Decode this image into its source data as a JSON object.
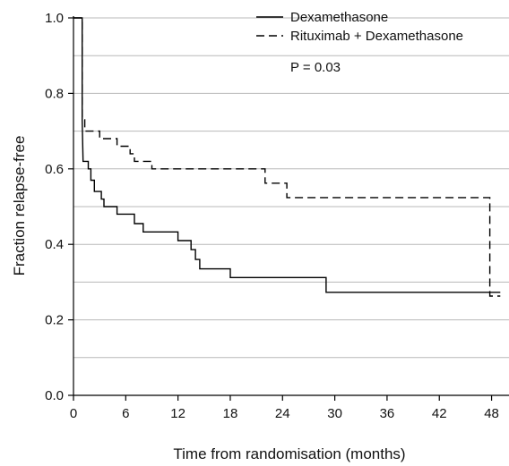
{
  "chart_data": {
    "type": "line",
    "title": "",
    "xlabel": "Time from randomisation (months)",
    "ylabel": "Fraction relapse-free",
    "xlim": [
      0,
      50
    ],
    "ylim": [
      0,
      1.0
    ],
    "xticks": [
      0,
      6,
      12,
      18,
      24,
      30,
      36,
      42,
      48
    ],
    "xtick_labels": [
      "0",
      "6",
      "12",
      "18",
      "24",
      "30",
      "36",
      "42",
      "48"
    ],
    "yticks": [
      0.0,
      0.2,
      0.4,
      0.6,
      0.8,
      1.0
    ],
    "ytick_labels": [
      "0.0",
      "0.2",
      "0.4",
      "0.6",
      "0.8",
      "1.0"
    ],
    "grid": "horizontal",
    "legend_position": "top-right",
    "annotation": "P  = 0.03",
    "series": [
      {
        "name": "Dexamethasone",
        "style": "solid",
        "color": "#000000",
        "step_points": [
          [
            0,
            1.0
          ],
          [
            1.0,
            1.0
          ],
          [
            1.0,
            0.73
          ],
          [
            1.1,
            0.62
          ],
          [
            1.7,
            0.62
          ],
          [
            1.7,
            0.6
          ],
          [
            2.0,
            0.6
          ],
          [
            2.0,
            0.57
          ],
          [
            2.4,
            0.57
          ],
          [
            2.4,
            0.54
          ],
          [
            3.2,
            0.54
          ],
          [
            3.2,
            0.52
          ],
          [
            3.5,
            0.52
          ],
          [
            3.5,
            0.5
          ],
          [
            5.0,
            0.5
          ],
          [
            5.0,
            0.48
          ],
          [
            7.0,
            0.48
          ],
          [
            7.0,
            0.455
          ],
          [
            8.0,
            0.455
          ],
          [
            8.0,
            0.433
          ],
          [
            12.0,
            0.433
          ],
          [
            12.0,
            0.41
          ],
          [
            13.5,
            0.41
          ],
          [
            13.5,
            0.386
          ],
          [
            14.0,
            0.386
          ],
          [
            14.0,
            0.36
          ],
          [
            14.5,
            0.36
          ],
          [
            14.5,
            0.335
          ],
          [
            18.0,
            0.335
          ],
          [
            18.0,
            0.312
          ],
          [
            29.0,
            0.312
          ],
          [
            29.0,
            0.273
          ],
          [
            49.0,
            0.273
          ]
        ]
      },
      {
        "name": "Rituximab + Dexamethasone",
        "style": "dashed",
        "color": "#000000",
        "step_points": [
          [
            0,
            1.0
          ],
          [
            1.0,
            1.0
          ],
          [
            1.0,
            0.73
          ],
          [
            1.3,
            0.73
          ],
          [
            1.3,
            0.7
          ],
          [
            3.0,
            0.7
          ],
          [
            3.0,
            0.68
          ],
          [
            5.0,
            0.68
          ],
          [
            5.0,
            0.66
          ],
          [
            6.5,
            0.66
          ],
          [
            6.5,
            0.64
          ],
          [
            7.0,
            0.64
          ],
          [
            7.0,
            0.62
          ],
          [
            9.0,
            0.62
          ],
          [
            9.0,
            0.6
          ],
          [
            22.0,
            0.6
          ],
          [
            22.0,
            0.562
          ],
          [
            24.5,
            0.562
          ],
          [
            24.5,
            0.524
          ],
          [
            47.8,
            0.524
          ],
          [
            47.8,
            0.263
          ],
          [
            49.0,
            0.263
          ]
        ]
      }
    ]
  }
}
